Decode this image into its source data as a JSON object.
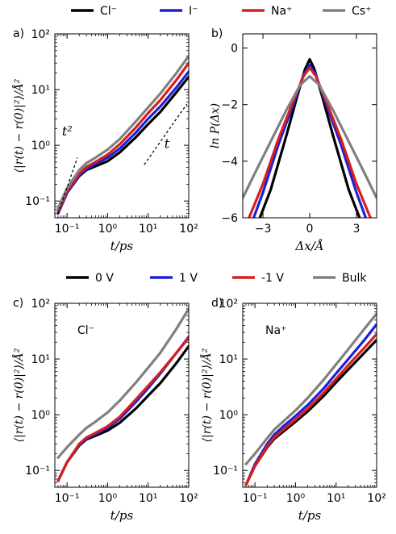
{
  "legends": {
    "top": [
      {
        "label": "Cl⁻",
        "color": "#000000"
      },
      {
        "label": "I⁻",
        "color": "#1f1fd6"
      },
      {
        "label": "Na⁺",
        "color": "#d61f1f"
      },
      {
        "label": "Cs⁺",
        "color": "#808080"
      }
    ],
    "middle": [
      {
        "label": "0 V",
        "color": "#000000"
      },
      {
        "label": "1 V",
        "color": "#1f1fd6"
      },
      {
        "label": "-1 V",
        "color": "#d61f1f"
      },
      {
        "label": "Bulk",
        "color": "#808080"
      }
    ]
  },
  "chart_data": [
    {
      "panel": "a)",
      "type": "line",
      "log_x": true,
      "log_y": true,
      "xlim": [
        0.05,
        100
      ],
      "ylim": [
        0.05,
        100
      ],
      "xlabel": "t/ps",
      "ylabel": "⟨|r(t) − r(0)|²⟩/Å²",
      "x_ticks": [
        "10⁻¹",
        "10⁰",
        "10¹",
        "10²"
      ],
      "y_ticks": [
        "10⁻¹",
        "10⁰",
        "10¹",
        "10²"
      ],
      "annotations": [
        {
          "text": "t²",
          "line": [
            [
              0.06,
              0.06
            ],
            [
              0.18,
              0.6
            ]
          ]
        },
        {
          "text": "t",
          "line": [
            [
              8,
              0.45
            ],
            [
              90,
              5.5
            ]
          ]
        }
      ],
      "series": [
        {
          "name": "Cl⁻",
          "color": "#000000",
          "x": [
            0.06,
            0.1,
            0.2,
            0.3,
            0.5,
            1,
            2,
            5,
            10,
            20,
            50,
            100
          ],
          "y": [
            0.06,
            0.14,
            0.28,
            0.36,
            0.42,
            0.52,
            0.75,
            1.4,
            2.4,
            4,
            9,
            17
          ]
        },
        {
          "name": "I⁻",
          "color": "#1f1fd6",
          "x": [
            0.06,
            0.1,
            0.2,
            0.3,
            0.5,
            1,
            2,
            5,
            10,
            20,
            50,
            100
          ],
          "y": [
            0.06,
            0.14,
            0.29,
            0.38,
            0.46,
            0.6,
            0.88,
            1.7,
            3,
            5,
            11,
            21
          ]
        },
        {
          "name": "Na⁺",
          "color": "#d61f1f",
          "x": [
            0.06,
            0.1,
            0.2,
            0.3,
            0.5,
            1,
            2,
            5,
            10,
            20,
            50,
            100
          ],
          "y": [
            0.065,
            0.15,
            0.31,
            0.41,
            0.5,
            0.68,
            1.05,
            2.1,
            3.8,
            6.5,
            15,
            30
          ]
        },
        {
          "name": "Cs⁺",
          "color": "#808080",
          "x": [
            0.06,
            0.1,
            0.2,
            0.3,
            0.5,
            1,
            2,
            5,
            10,
            20,
            50,
            100
          ],
          "y": [
            0.075,
            0.17,
            0.36,
            0.48,
            0.6,
            0.84,
            1.3,
            2.7,
            4.8,
            8.5,
            20,
            40
          ]
        }
      ]
    },
    {
      "panel": "b)",
      "type": "line",
      "xlim": [
        -4.3,
        4.3
      ],
      "ylim": [
        -6,
        0.5
      ],
      "xlabel": "Δx/Å",
      "ylabel": "ln P(Δx)",
      "x_ticks": [
        -3,
        0,
        3
      ],
      "y_ticks": [
        -6,
        -4,
        -2,
        0
      ],
      "series": [
        {
          "name": "Cl⁻",
          "color": "#000000",
          "x": [
            -3.2,
            -2.5,
            -1.5,
            -0.8,
            -0.3,
            0,
            0.3,
            0.8,
            1.5,
            2.5,
            3.2
          ],
          "y": [
            -6,
            -5.0,
            -3.1,
            -1.7,
            -0.75,
            -0.4,
            -0.75,
            -1.7,
            -3.1,
            -5.0,
            -6
          ]
        },
        {
          "name": "I⁻",
          "color": "#1f1fd6",
          "x": [
            -3.6,
            -3,
            -2,
            -1,
            -0.4,
            0,
            0.4,
            1,
            2,
            3,
            3.6
          ],
          "y": [
            -6,
            -5.1,
            -3.4,
            -1.9,
            -0.95,
            -0.6,
            -0.95,
            -1.9,
            -3.4,
            -5.1,
            -6
          ]
        },
        {
          "name": "Na⁺",
          "color": "#d61f1f",
          "x": [
            -3.9,
            -3,
            -2,
            -1,
            -0.4,
            0,
            0.4,
            1,
            2,
            3,
            3.9
          ],
          "y": [
            -6,
            -4.8,
            -3.2,
            -1.8,
            -1.0,
            -0.7,
            -1.0,
            -1.8,
            -3.2,
            -4.8,
            -6
          ]
        },
        {
          "name": "Cs⁺",
          "color": "#808080",
          "x": [
            -4.3,
            -3.5,
            -2.5,
            -1.5,
            -0.6,
            0,
            0.6,
            1.5,
            2.5,
            3.5,
            4.3
          ],
          "y": [
            -5.3,
            -4.4,
            -3.3,
            -2.2,
            -1.3,
            -1.0,
            -1.3,
            -2.2,
            -3.3,
            -4.4,
            -5.3
          ]
        }
      ]
    },
    {
      "panel": "c)",
      "type": "line",
      "log_x": true,
      "log_y": true,
      "xlim": [
        0.05,
        100
      ],
      "ylim": [
        0.05,
        100
      ],
      "xlabel": "t/ps",
      "ylabel": "⟨|r(t) − r(0)|²⟩/Å²",
      "x_ticks": [
        "10⁻¹",
        "10⁰",
        "10¹",
        "10²"
      ],
      "y_ticks": [
        "10⁻¹",
        "10⁰",
        "10¹",
        "10²"
      ],
      "annotation_label": "Cl⁻",
      "series": [
        {
          "name": "0 V",
          "color": "#000000",
          "x": [
            0.06,
            0.1,
            0.2,
            0.3,
            0.5,
            1,
            2,
            5,
            10,
            20,
            50,
            100
          ],
          "y": [
            0.065,
            0.14,
            0.28,
            0.36,
            0.42,
            0.52,
            0.72,
            1.3,
            2.2,
            3.7,
            8.5,
            17
          ]
        },
        {
          "name": "1 V",
          "color": "#1f1fd6",
          "x": [
            0.06,
            0.1,
            0.2,
            0.3,
            0.5,
            1,
            2,
            5,
            10,
            20,
            50,
            100
          ],
          "y": [
            0.065,
            0.14,
            0.29,
            0.37,
            0.45,
            0.58,
            0.85,
            1.7,
            3,
            5.5,
            13,
            25
          ]
        },
        {
          "name": "-1 V",
          "color": "#d61f1f",
          "x": [
            0.06,
            0.1,
            0.2,
            0.3,
            0.5,
            1,
            2,
            5,
            10,
            20,
            50,
            100
          ],
          "y": [
            0.065,
            0.14,
            0.3,
            0.39,
            0.47,
            0.62,
            0.92,
            1.9,
            3.3,
            5.8,
            13,
            24
          ]
        },
        {
          "name": "Bulk",
          "color": "#808080",
          "x": [
            0.06,
            0.1,
            0.2,
            0.3,
            0.5,
            1,
            2,
            5,
            10,
            20,
            50,
            100
          ],
          "y": [
            0.17,
            0.26,
            0.44,
            0.58,
            0.75,
            1.1,
            1.8,
            3.8,
            7,
            13,
            35,
            80
          ]
        }
      ]
    },
    {
      "panel": "d)",
      "type": "line",
      "log_x": true,
      "log_y": true,
      "xlim": [
        0.05,
        100
      ],
      "ylim": [
        0.05,
        100
      ],
      "xlabel": "t/ps",
      "ylabel": "⟨|r(t) − r(0)|²⟩/Å²",
      "x_ticks": [
        "10⁻¹",
        "10⁰",
        "10¹",
        "10²"
      ],
      "y_ticks": [
        "10⁻¹",
        "10⁰",
        "10¹",
        "10²"
      ],
      "annotation_label": "Na⁺",
      "series": [
        {
          "name": "0 V",
          "color": "#000000",
          "x": [
            0.06,
            0.1,
            0.2,
            0.3,
            0.5,
            1,
            2,
            5,
            10,
            20,
            50,
            100
          ],
          "y": [
            0.055,
            0.12,
            0.26,
            0.37,
            0.5,
            0.75,
            1.15,
            2.2,
            3.8,
            6.5,
            13,
            22
          ]
        },
        {
          "name": "1 V",
          "color": "#1f1fd6",
          "x": [
            0.06,
            0.1,
            0.2,
            0.3,
            0.5,
            1,
            2,
            5,
            10,
            20,
            50,
            100
          ],
          "y": [
            0.055,
            0.13,
            0.3,
            0.44,
            0.62,
            0.95,
            1.5,
            3,
            5.5,
            10,
            22,
            42
          ]
        },
        {
          "name": "-1 V",
          "color": "#d61f1f",
          "x": [
            0.06,
            0.1,
            0.2,
            0.3,
            0.5,
            1,
            2,
            5,
            10,
            20,
            50,
            100
          ],
          "y": [
            0.055,
            0.12,
            0.27,
            0.39,
            0.54,
            0.82,
            1.28,
            2.5,
            4.4,
            7.8,
            16,
            28
          ]
        },
        {
          "name": "Bulk",
          "color": "#808080",
          "x": [
            0.06,
            0.1,
            0.2,
            0.3,
            0.5,
            1,
            2,
            5,
            10,
            20,
            50,
            100
          ],
          "y": [
            0.13,
            0.2,
            0.38,
            0.54,
            0.76,
            1.2,
            2.0,
            4.3,
            8,
            15,
            35,
            65
          ]
        }
      ]
    }
  ]
}
